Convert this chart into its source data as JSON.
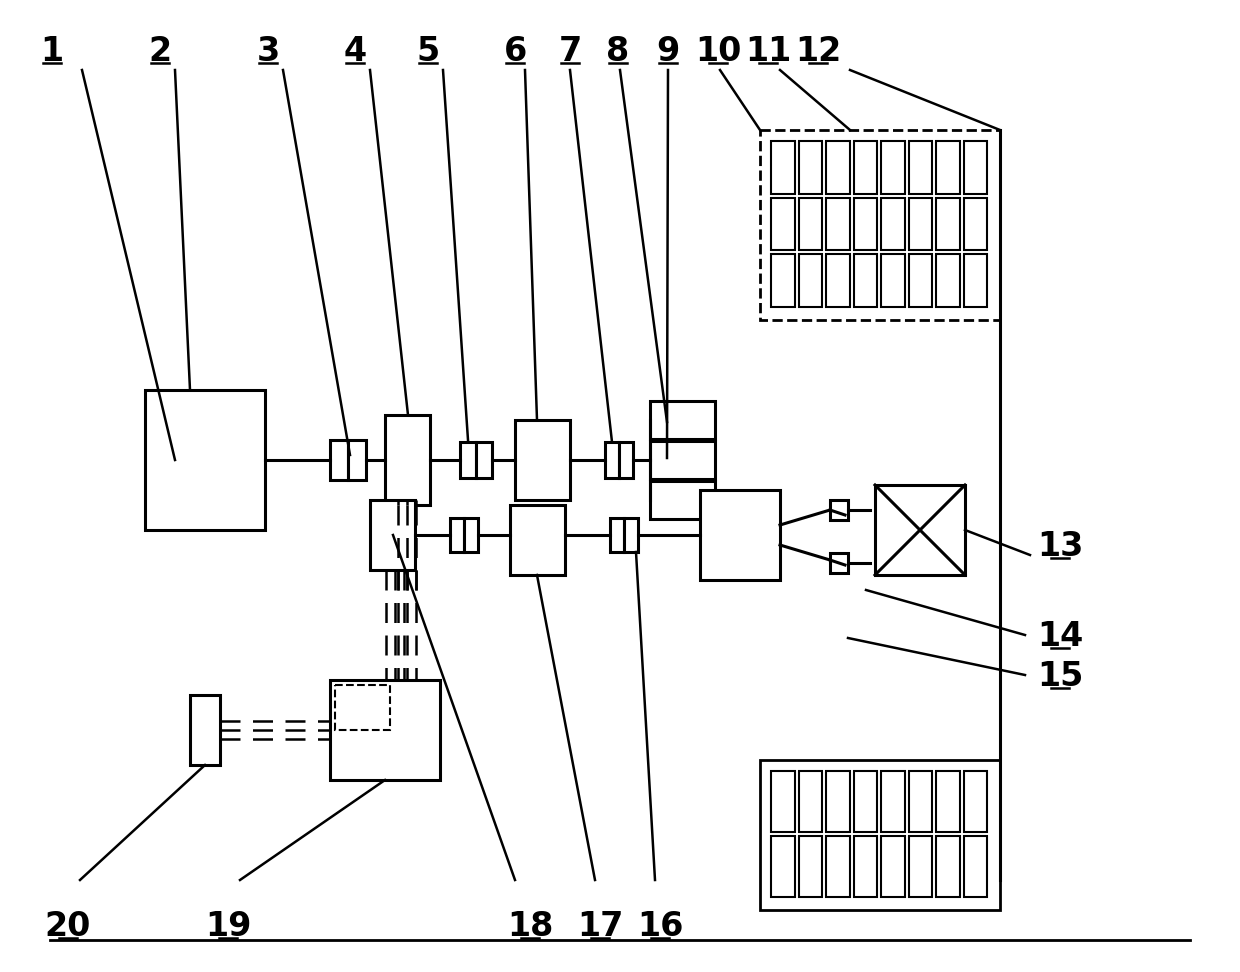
{
  "bg_color": "#ffffff",
  "line_color": "#000000",
  "font_size_label": 24,
  "label_font_weight": "bold"
}
